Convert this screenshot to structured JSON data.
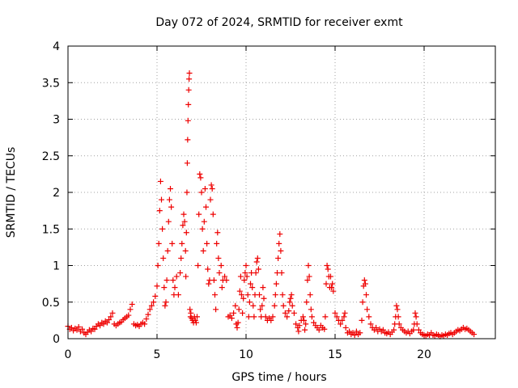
{
  "chart_data": {
    "type": "scatter",
    "title": "Day 072 of 2024, SRMTID for receiver exmt",
    "xlabel": "GPS time / hours",
    "ylabel": "SRMTID / TECUs",
    "xlim": [
      0,
      24
    ],
    "ylim": [
      0,
      4
    ],
    "xticks": [
      0,
      5,
      10,
      15,
      20
    ],
    "yticks": [
      0,
      0.5,
      1,
      1.5,
      2,
      2.5,
      3,
      3.5,
      4
    ],
    "xtick_labels": [
      "0",
      "5",
      "10",
      "15",
      "20"
    ],
    "ytick_labels": [
      "0",
      "0.5",
      "1",
      "1.5",
      "2",
      "2.5",
      "3",
      "3.5",
      "4"
    ],
    "grid": true,
    "marker": "+",
    "color": "#ee0000",
    "series": [
      {
        "name": "SRMTID",
        "points": [
          [
            0.0,
            0.17
          ],
          [
            0.1,
            0.13
          ],
          [
            0.2,
            0.15
          ],
          [
            0.3,
            0.11
          ],
          [
            0.4,
            0.14
          ],
          [
            0.5,
            0.12
          ],
          [
            0.6,
            0.16
          ],
          [
            0.7,
            0.1
          ],
          [
            0.8,
            0.13
          ],
          [
            0.9,
            0.08
          ],
          [
            1.0,
            0.06
          ],
          [
            1.1,
            0.09
          ],
          [
            1.2,
            0.12
          ],
          [
            1.3,
            0.1
          ],
          [
            1.4,
            0.14
          ],
          [
            1.5,
            0.13
          ],
          [
            1.6,
            0.17
          ],
          [
            1.7,
            0.2
          ],
          [
            1.8,
            0.18
          ],
          [
            1.9,
            0.22
          ],
          [
            2.0,
            0.2
          ],
          [
            2.1,
            0.24
          ],
          [
            2.2,
            0.22
          ],
          [
            2.3,
            0.26
          ],
          [
            2.4,
            0.3
          ],
          [
            2.5,
            0.35
          ],
          [
            2.6,
            0.2
          ],
          [
            2.7,
            0.18
          ],
          [
            2.8,
            0.2
          ],
          [
            2.9,
            0.22
          ],
          [
            3.0,
            0.23
          ],
          [
            3.1,
            0.26
          ],
          [
            3.2,
            0.28
          ],
          [
            3.3,
            0.3
          ],
          [
            3.4,
            0.32
          ],
          [
            3.5,
            0.4
          ],
          [
            3.6,
            0.47
          ],
          [
            3.7,
            0.2
          ],
          [
            3.8,
            0.18
          ],
          [
            3.9,
            0.19
          ],
          [
            4.0,
            0.17
          ],
          [
            4.1,
            0.2
          ],
          [
            4.2,
            0.22
          ],
          [
            4.3,
            0.2
          ],
          [
            4.4,
            0.27
          ],
          [
            4.5,
            0.33
          ],
          [
            4.6,
            0.4
          ],
          [
            4.7,
            0.45
          ],
          [
            4.8,
            0.5
          ],
          [
            4.9,
            0.58
          ],
          [
            5.0,
            0.72
          ],
          [
            5.05,
            1.0
          ],
          [
            5.1,
            1.3
          ],
          [
            5.15,
            1.75
          ],
          [
            5.2,
            2.15
          ],
          [
            5.25,
            1.9
          ],
          [
            5.3,
            1.5
          ],
          [
            5.35,
            1.1
          ],
          [
            5.4,
            0.7
          ],
          [
            5.45,
            0.45
          ],
          [
            5.5,
            0.5
          ],
          [
            5.55,
            0.8
          ],
          [
            5.6,
            1.2
          ],
          [
            5.65,
            1.6
          ],
          [
            5.7,
            1.9
          ],
          [
            5.75,
            2.05
          ],
          [
            5.8,
            1.8
          ],
          [
            5.85,
            1.3
          ],
          [
            5.9,
            0.8
          ],
          [
            5.95,
            0.6
          ],
          [
            6.0,
            0.7
          ],
          [
            6.1,
            0.85
          ],
          [
            6.2,
            0.6
          ],
          [
            6.3,
            0.9
          ],
          [
            6.35,
            1.1
          ],
          [
            6.4,
            1.3
          ],
          [
            6.45,
            1.55
          ],
          [
            6.5,
            1.7
          ],
          [
            6.55,
            1.6
          ],
          [
            6.6,
            1.2
          ],
          [
            6.62,
            0.85
          ],
          [
            6.65,
            1.45
          ],
          [
            6.68,
            2.0
          ],
          [
            6.7,
            2.4
          ],
          [
            6.72,
            2.72
          ],
          [
            6.74,
            2.98
          ],
          [
            6.76,
            3.2
          ],
          [
            6.78,
            3.4
          ],
          [
            6.8,
            3.55
          ],
          [
            6.82,
            3.63
          ],
          [
            6.85,
            0.4
          ],
          [
            6.88,
            0.3
          ],
          [
            6.9,
            0.35
          ],
          [
            6.95,
            0.28
          ],
          [
            7.0,
            0.25
          ],
          [
            7.05,
            0.22
          ],
          [
            7.1,
            0.3
          ],
          [
            7.15,
            0.25
          ],
          [
            7.2,
            0.22
          ],
          [
            7.25,
            0.3
          ],
          [
            7.3,
            1.0
          ],
          [
            7.35,
            1.7
          ],
          [
            7.4,
            2.25
          ],
          [
            7.45,
            2.2
          ],
          [
            7.5,
            2.0
          ],
          [
            7.55,
            1.5
          ],
          [
            7.6,
            1.2
          ],
          [
            7.65,
            1.6
          ],
          [
            7.7,
            2.05
          ],
          [
            7.75,
            1.8
          ],
          [
            7.8,
            1.3
          ],
          [
            7.85,
            0.95
          ],
          [
            7.9,
            0.75
          ],
          [
            7.95,
            0.8
          ],
          [
            8.0,
            1.9
          ],
          [
            8.05,
            2.1
          ],
          [
            8.1,
            2.05
          ],
          [
            8.15,
            1.7
          ],
          [
            8.2,
            0.8
          ],
          [
            8.25,
            0.6
          ],
          [
            8.3,
            0.4
          ],
          [
            8.35,
            1.3
          ],
          [
            8.4,
            1.45
          ],
          [
            8.45,
            1.1
          ],
          [
            8.5,
            0.9
          ],
          [
            8.6,
            1.0
          ],
          [
            8.65,
            0.7
          ],
          [
            8.7,
            0.8
          ],
          [
            8.8,
            0.85
          ],
          [
            8.9,
            0.8
          ],
          [
            9.0,
            0.3
          ],
          [
            9.1,
            0.32
          ],
          [
            9.2,
            0.28
          ],
          [
            9.3,
            0.35
          ],
          [
            9.4,
            0.45
          ],
          [
            9.45,
            0.2
          ],
          [
            9.5,
            0.15
          ],
          [
            9.55,
            0.22
          ],
          [
            9.6,
            0.4
          ],
          [
            9.65,
            0.65
          ],
          [
            9.7,
            0.85
          ],
          [
            9.75,
            0.6
          ],
          [
            9.8,
            0.35
          ],
          [
            9.85,
            0.55
          ],
          [
            9.9,
            0.8
          ],
          [
            9.95,
            0.9
          ],
          [
            10.0,
            1.0
          ],
          [
            10.05,
            0.85
          ],
          [
            10.1,
            0.6
          ],
          [
            10.15,
            0.3
          ],
          [
            10.2,
            0.5
          ],
          [
            10.25,
            0.75
          ],
          [
            10.3,
            0.9
          ],
          [
            10.35,
            0.7
          ],
          [
            10.4,
            0.45
          ],
          [
            10.45,
            0.3
          ],
          [
            10.5,
            0.6
          ],
          [
            10.55,
            0.9
          ],
          [
            10.6,
            1.05
          ],
          [
            10.65,
            1.1
          ],
          [
            10.7,
            0.95
          ],
          [
            10.75,
            0.6
          ],
          [
            10.8,
            0.4
          ],
          [
            10.85,
            0.3
          ],
          [
            10.9,
            0.45
          ],
          [
            10.95,
            0.7
          ],
          [
            11.0,
            0.55
          ],
          [
            11.1,
            0.3
          ],
          [
            11.2,
            0.25
          ],
          [
            11.3,
            0.28
          ],
          [
            11.4,
            0.25
          ],
          [
            11.5,
            0.3
          ],
          [
            11.6,
            0.45
          ],
          [
            11.65,
            0.6
          ],
          [
            11.7,
            0.75
          ],
          [
            11.75,
            0.9
          ],
          [
            11.8,
            1.1
          ],
          [
            11.85,
            1.3
          ],
          [
            11.9,
            1.43
          ],
          [
            11.95,
            1.2
          ],
          [
            12.0,
            0.9
          ],
          [
            12.05,
            0.6
          ],
          [
            12.1,
            0.45
          ],
          [
            12.2,
            0.35
          ],
          [
            12.3,
            0.3
          ],
          [
            12.4,
            0.38
          ],
          [
            12.45,
            0.5
          ],
          [
            12.5,
            0.55
          ],
          [
            12.55,
            0.6
          ],
          [
            12.6,
            0.45
          ],
          [
            12.7,
            0.35
          ],
          [
            12.8,
            0.2
          ],
          [
            12.9,
            0.15
          ],
          [
            12.95,
            0.1
          ],
          [
            13.0,
            0.18
          ],
          [
            13.1,
            0.25
          ],
          [
            13.2,
            0.3
          ],
          [
            13.25,
            0.25
          ],
          [
            13.3,
            0.12
          ],
          [
            13.35,
            0.2
          ],
          [
            13.4,
            0.5
          ],
          [
            13.45,
            0.8
          ],
          [
            13.5,
            1.0
          ],
          [
            13.55,
            0.85
          ],
          [
            13.6,
            0.6
          ],
          [
            13.65,
            0.4
          ],
          [
            13.7,
            0.3
          ],
          [
            13.8,
            0.22
          ],
          [
            13.9,
            0.18
          ],
          [
            14.0,
            0.15
          ],
          [
            14.1,
            0.12
          ],
          [
            14.2,
            0.18
          ],
          [
            14.3,
            0.15
          ],
          [
            14.4,
            0.13
          ],
          [
            14.45,
            0.3
          ],
          [
            14.5,
            0.75
          ],
          [
            14.55,
            1.0
          ],
          [
            14.6,
            0.95
          ],
          [
            14.65,
            0.85
          ],
          [
            14.7,
            0.7
          ],
          [
            14.75,
            0.85
          ],
          [
            14.8,
            0.7
          ],
          [
            14.85,
            0.75
          ],
          [
            14.9,
            0.65
          ],
          [
            15.0,
            0.35
          ],
          [
            15.1,
            0.3
          ],
          [
            15.2,
            0.25
          ],
          [
            15.3,
            0.2
          ],
          [
            15.4,
            0.25
          ],
          [
            15.5,
            0.3
          ],
          [
            15.55,
            0.35
          ],
          [
            15.6,
            0.15
          ],
          [
            15.7,
            0.08
          ],
          [
            15.8,
            0.1
          ],
          [
            15.9,
            0.06
          ],
          [
            16.0,
            0.08
          ],
          [
            16.1,
            0.05
          ],
          [
            16.2,
            0.1
          ],
          [
            16.3,
            0.06
          ],
          [
            16.4,
            0.08
          ],
          [
            16.5,
            0.25
          ],
          [
            16.55,
            0.5
          ],
          [
            16.6,
            0.72
          ],
          [
            16.65,
            0.8
          ],
          [
            16.7,
            0.75
          ],
          [
            16.75,
            0.6
          ],
          [
            16.8,
            0.4
          ],
          [
            16.9,
            0.3
          ],
          [
            17.0,
            0.2
          ],
          [
            17.1,
            0.15
          ],
          [
            17.2,
            0.12
          ],
          [
            17.3,
            0.15
          ],
          [
            17.4,
            0.1
          ],
          [
            17.5,
            0.13
          ],
          [
            17.6,
            0.1
          ],
          [
            17.7,
            0.12
          ],
          [
            17.8,
            0.08
          ],
          [
            17.9,
            0.07
          ],
          [
            18.0,
            0.09
          ],
          [
            18.1,
            0.06
          ],
          [
            18.2,
            0.09
          ],
          [
            18.3,
            0.12
          ],
          [
            18.35,
            0.2
          ],
          [
            18.4,
            0.3
          ],
          [
            18.45,
            0.45
          ],
          [
            18.5,
            0.4
          ],
          [
            18.55,
            0.3
          ],
          [
            18.6,
            0.2
          ],
          [
            18.7,
            0.15
          ],
          [
            18.8,
            0.12
          ],
          [
            18.9,
            0.1
          ],
          [
            19.0,
            0.08
          ],
          [
            19.1,
            0.1
          ],
          [
            19.2,
            0.07
          ],
          [
            19.3,
            0.1
          ],
          [
            19.4,
            0.12
          ],
          [
            19.45,
            0.2
          ],
          [
            19.5,
            0.35
          ],
          [
            19.55,
            0.3
          ],
          [
            19.6,
            0.2
          ],
          [
            19.7,
            0.12
          ],
          [
            19.8,
            0.08
          ],
          [
            19.9,
            0.06
          ],
          [
            20.0,
            0.05
          ],
          [
            20.1,
            0.04
          ],
          [
            20.2,
            0.06
          ],
          [
            20.3,
            0.05
          ],
          [
            20.4,
            0.08
          ],
          [
            20.5,
            0.05
          ],
          [
            20.6,
            0.04
          ],
          [
            20.7,
            0.06
          ],
          [
            20.8,
            0.05
          ],
          [
            20.9,
            0.03
          ],
          [
            21.0,
            0.05
          ],
          [
            21.1,
            0.04
          ],
          [
            21.2,
            0.06
          ],
          [
            21.3,
            0.05
          ],
          [
            21.4,
            0.07
          ],
          [
            21.5,
            0.08
          ],
          [
            21.6,
            0.06
          ],
          [
            21.7,
            0.08
          ],
          [
            21.8,
            0.1
          ],
          [
            21.9,
            0.12
          ],
          [
            22.0,
            0.11
          ],
          [
            22.1,
            0.13
          ],
          [
            22.2,
            0.15
          ],
          [
            22.3,
            0.13
          ],
          [
            22.4,
            0.14
          ],
          [
            22.5,
            0.12
          ],
          [
            22.6,
            0.1
          ],
          [
            22.7,
            0.08
          ],
          [
            22.8,
            0.06
          ]
        ]
      }
    ]
  }
}
